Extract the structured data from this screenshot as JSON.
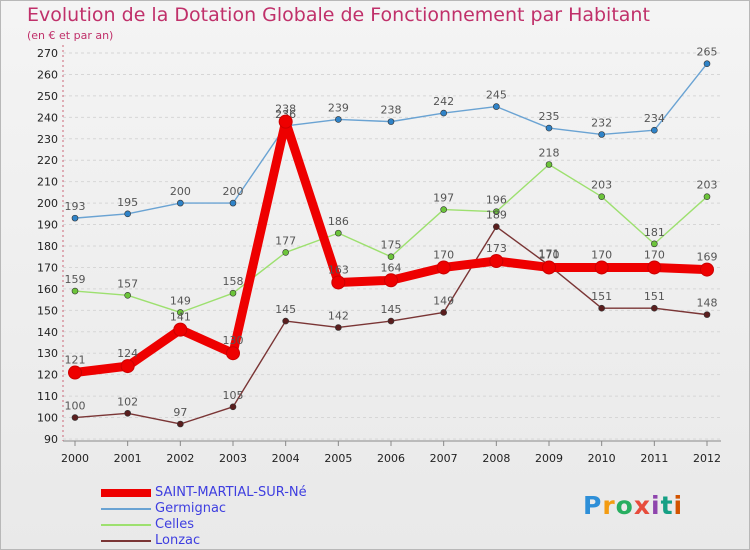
{
  "header": {
    "title": "Evolution de la Dotation Globale de Fonctionnement par Habitant",
    "subtitle": "(en € et par an)"
  },
  "logo": {
    "text": "Proxiti",
    "colors": [
      "#2e8fd8",
      "#f39c12",
      "#27ae60",
      "#e74c3c",
      "#8e44ad",
      "#16a085",
      "#d35400"
    ]
  },
  "chart_data": {
    "type": "line",
    "title": "Evolution de la Dotation Globale de Fonctionnement par Habitant",
    "ylabel": "(en € et par an)",
    "xlabel": "",
    "ylim": [
      90,
      270
    ],
    "yticks": [
      90,
      100,
      110,
      120,
      130,
      140,
      150,
      160,
      170,
      180,
      190,
      200,
      210,
      220,
      230,
      240,
      250,
      260,
      270
    ],
    "x": [
      "2000",
      "2001",
      "2002",
      "2003",
      "2004",
      "2005",
      "2006",
      "2007",
      "2008",
      "2009",
      "2010",
      "2011",
      "2012"
    ],
    "legend_position": "bottom-left",
    "series": [
      {
        "name": "Germignac",
        "color": "#6aa3d3",
        "marker": "#2f83c8",
        "values": [
          193,
          195,
          200,
          200,
          236,
          239,
          238,
          242,
          245,
          235,
          232,
          234,
          265
        ]
      },
      {
        "name": "Celles",
        "color": "#9de06f",
        "marker": "#6cc43a",
        "values": [
          159,
          157,
          149,
          158,
          177,
          186,
          175,
          197,
          196,
          218,
          203,
          181,
          203
        ]
      },
      {
        "name": "Lonzac",
        "color": "#7a3535",
        "marker": "#5a1e1e",
        "values": [
          100,
          102,
          97,
          105,
          145,
          142,
          145,
          149,
          189,
          171,
          151,
          151,
          148
        ]
      },
      {
        "name": "SAINT-MARTIAL-SUR-Né",
        "color": "#ee0000",
        "marker": "#ee0000",
        "values": [
          121,
          124,
          141,
          130,
          238,
          163,
          164,
          170,
          173,
          170,
          170,
          170,
          169
        ]
      }
    ],
    "legend_order": [
      "SAINT-MARTIAL-SUR-Né",
      "Germignac",
      "Celles",
      "Lonzac"
    ]
  }
}
